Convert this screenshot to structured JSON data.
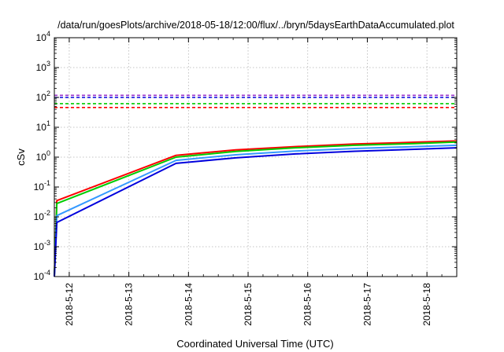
{
  "chart_data": {
    "type": "line",
    "title": "/data/run/goesPlots/archive/2018-05-18/12:00/flux/../bryn/5daysEarthDataAccumulated.plot",
    "xlabel": "Coordinated Universal Time (UTC)",
    "ylabel": "cSv",
    "yscale": "log",
    "ylim": [
      0.0001,
      10000
    ],
    "xlim": [
      "2018-05-11 18:00",
      "2018-05-18 12:00"
    ],
    "grid": true,
    "y_ticks": [
      {
        "base": "10",
        "exp": "-4"
      },
      {
        "base": "10",
        "exp": "-3"
      },
      {
        "base": "10",
        "exp": "-2"
      },
      {
        "base": "10",
        "exp": "-1"
      },
      {
        "base": "10",
        "exp": "0"
      },
      {
        "base": "10",
        "exp": "1"
      },
      {
        "base": "10",
        "exp": "2"
      },
      {
        "base": "10",
        "exp": "3"
      },
      {
        "base": "10",
        "exp": "4"
      }
    ],
    "x_ticks": [
      "2018-5-12",
      "2018-5-13",
      "2018-5-14",
      "2018-5-15",
      "2018-5-16",
      "2018-5-17",
      "2018-5-18"
    ],
    "series": [
      {
        "color": "#ff0000",
        "style": "solid",
        "x": [
          "2018-05-11 18:00",
          "2018-05-11 19:00",
          "2018-05-13 19:00",
          "2018-05-14 19:00",
          "2018-05-15 19:00",
          "2018-05-16 19:00",
          "2018-05-17 19:00",
          "2018-05-18 12:00"
        ],
        "values": [
          0.0001,
          0.035,
          1.15,
          1.75,
          2.25,
          2.75,
          3.15,
          3.5
        ]
      },
      {
        "color": "#00cc00",
        "style": "solid",
        "x": [
          "2018-05-11 18:00",
          "2018-05-11 19:00",
          "2018-05-13 19:00",
          "2018-05-14 19:00",
          "2018-05-15 19:00",
          "2018-05-16 19:00",
          "2018-05-17 19:00",
          "2018-05-18 12:00"
        ],
        "values": [
          0.0001,
          0.028,
          1.0,
          1.55,
          2.05,
          2.5,
          2.85,
          3.2
        ]
      },
      {
        "color": "#3399ff",
        "style": "solid",
        "x": [
          "2018-05-11 18:00",
          "2018-05-11 19:00",
          "2018-05-13 19:00",
          "2018-05-14 19:00",
          "2018-05-15 19:00",
          "2018-05-16 19:00",
          "2018-05-17 19:00",
          "2018-05-18 12:00"
        ],
        "values": [
          0.0001,
          0.011,
          0.78,
          1.2,
          1.6,
          1.95,
          2.25,
          2.5
        ]
      },
      {
        "color": "#0000dd",
        "style": "solid",
        "x": [
          "2018-05-11 18:00",
          "2018-05-11 19:00",
          "2018-05-13 19:00",
          "2018-05-14 19:00",
          "2018-05-15 19:00",
          "2018-05-16 19:00",
          "2018-05-17 19:00",
          "2018-05-18 12:00"
        ],
        "values": [
          0.0001,
          0.0065,
          0.62,
          0.95,
          1.28,
          1.58,
          1.83,
          2.05
        ]
      },
      {
        "color": "#9933cc",
        "style": "dashed",
        "x": [
          "2018-05-11 18:00",
          "2018-05-18 12:00"
        ],
        "values": [
          118,
          118
        ]
      },
      {
        "color": "#0000dd",
        "style": "dashed",
        "x": [
          "2018-05-11 18:00",
          "2018-05-18 12:00"
        ],
        "values": [
          100,
          100
        ]
      },
      {
        "color": "#00cc00",
        "style": "dashed",
        "x": [
          "2018-05-11 18:00",
          "2018-05-18 12:00"
        ],
        "values": [
          62,
          62
        ]
      },
      {
        "color": "#ff0000",
        "style": "dashed",
        "x": [
          "2018-05-11 18:00",
          "2018-05-18 12:00"
        ],
        "values": [
          46,
          46
        ]
      }
    ]
  }
}
